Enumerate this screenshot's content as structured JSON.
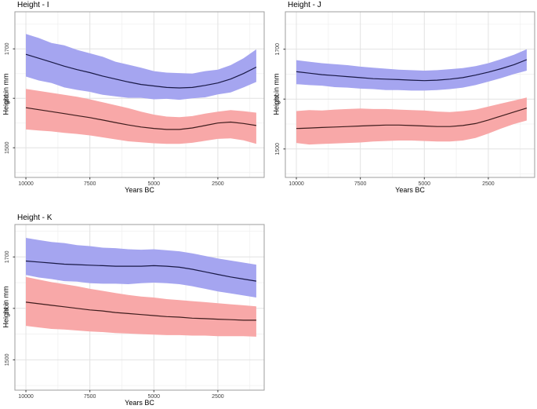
{
  "page": {
    "background": "#ffffff"
  },
  "colors": {
    "panel_bg": "#ffffff",
    "panel_border": "#9e9e9e",
    "grid_major": "#e2e2e2",
    "grid_minor": "#f0f0f0",
    "tick_mark": "#333333",
    "tick_text": "#404040",
    "blue_ribbon": "#a5a5f0",
    "blue_line": "#191946",
    "red_ribbon": "#f8a8a8",
    "red_line": "#3f1d1d"
  },
  "chart_data": [
    {
      "type": "area",
      "title": "Height - I",
      "xlabel": "Years BC",
      "ylabel": "Height in mm",
      "x_axis_reversed": true,
      "grid": "on",
      "legend": "none",
      "xlim": [
        10430,
        690
      ],
      "ylim": [
        1440,
        1775
      ],
      "x_ticks": [
        10000,
        7500,
        5000,
        2500
      ],
      "y_ticks": [
        1500,
        1600,
        1700
      ],
      "x_minor": [
        8750,
        6250,
        3750,
        1250
      ],
      "y_minor": [
        1450,
        1550,
        1650,
        1750
      ],
      "x": [
        10000,
        9500,
        9000,
        8500,
        8000,
        7500,
        7000,
        6500,
        6000,
        5500,
        5000,
        4500,
        4000,
        3500,
        3000,
        2500,
        2000,
        1500,
        1000
      ],
      "series": [
        {
          "name": "blue-band",
          "fill": "#a5a5f0",
          "line": "#191946",
          "center": [
            1689,
            1681,
            1673,
            1665,
            1658,
            1652,
            1645,
            1639,
            1633,
            1628,
            1625,
            1622,
            1621,
            1622,
            1626,
            1631,
            1639,
            1650,
            1663
          ],
          "upper": [
            1730,
            1722,
            1712,
            1707,
            1698,
            1691,
            1684,
            1674,
            1668,
            1662,
            1655,
            1652,
            1651,
            1650,
            1655,
            1658,
            1667,
            1681,
            1699
          ],
          "lower": [
            1644,
            1636,
            1631,
            1622,
            1617,
            1613,
            1607,
            1604,
            1601,
            1601,
            1598,
            1599,
            1597,
            1600,
            1602,
            1608,
            1612,
            1622,
            1633
          ]
        },
        {
          "name": "red-band",
          "fill": "#f8a8a8",
          "line": "#3f1d1d",
          "center": [
            1581,
            1577,
            1573,
            1569,
            1565,
            1561,
            1556,
            1551,
            1546,
            1542,
            1539,
            1537,
            1537,
            1540,
            1545,
            1550,
            1552,
            1549,
            1545
          ],
          "upper": [
            1619,
            1615,
            1611,
            1607,
            1603,
            1598,
            1592,
            1586,
            1580,
            1573,
            1567,
            1563,
            1562,
            1564,
            1569,
            1573,
            1576,
            1574,
            1571
          ],
          "lower": [
            1537,
            1535,
            1533,
            1530,
            1528,
            1525,
            1521,
            1517,
            1513,
            1511,
            1509,
            1508,
            1508,
            1510,
            1514,
            1518,
            1519,
            1515,
            1508
          ]
        }
      ]
    },
    {
      "type": "area",
      "title": "Height - J",
      "xlabel": "Years BC",
      "ylabel": "Height in mm",
      "x_axis_reversed": true,
      "grid": "on",
      "legend": "none",
      "xlim": [
        10430,
        690
      ],
      "ylim": [
        1443,
        1775
      ],
      "x_ticks": [
        10000,
        7500,
        5000,
        2500
      ],
      "y_ticks": [
        1500,
        1600,
        1700
      ],
      "x_minor": [
        8750,
        6250,
        3750,
        1250
      ],
      "y_minor": [
        1450,
        1550,
        1650,
        1750
      ],
      "x": [
        10000,
        9500,
        9000,
        8500,
        8000,
        7500,
        7000,
        6500,
        6000,
        5500,
        5000,
        4500,
        4000,
        3500,
        3000,
        2500,
        2000,
        1500,
        1000
      ],
      "series": [
        {
          "name": "blue-band",
          "fill": "#a5a5f0",
          "line": "#191946",
          "center": [
            1655,
            1652,
            1649,
            1647,
            1645,
            1643,
            1641,
            1640,
            1639,
            1638,
            1637,
            1638,
            1640,
            1643,
            1648,
            1654,
            1661,
            1669,
            1679
          ],
          "upper": [
            1678,
            1675,
            1672,
            1670,
            1668,
            1665,
            1663,
            1661,
            1659,
            1658,
            1657,
            1658,
            1660,
            1662,
            1666,
            1672,
            1680,
            1689,
            1700
          ],
          "lower": [
            1630,
            1628,
            1627,
            1624,
            1623,
            1621,
            1620,
            1618,
            1618,
            1617,
            1617,
            1618,
            1620,
            1623,
            1628,
            1635,
            1642,
            1650,
            1657
          ]
        },
        {
          "name": "red-band",
          "fill": "#f8a8a8",
          "line": "#3f1d1d",
          "center": [
            1541,
            1542,
            1543,
            1544,
            1545,
            1546,
            1547,
            1548,
            1548,
            1547,
            1546,
            1545,
            1545,
            1547,
            1551,
            1558,
            1566,
            1574,
            1582
          ],
          "upper": [
            1576,
            1578,
            1577,
            1579,
            1580,
            1581,
            1580,
            1580,
            1579,
            1578,
            1577,
            1575,
            1574,
            1576,
            1579,
            1585,
            1591,
            1597,
            1603
          ],
          "lower": [
            1512,
            1509,
            1510,
            1511,
            1512,
            1513,
            1515,
            1516,
            1517,
            1517,
            1516,
            1515,
            1515,
            1517,
            1522,
            1531,
            1541,
            1550,
            1557
          ]
        }
      ]
    },
    {
      "type": "area",
      "title": "Height - K",
      "xlabel": "Years BC",
      "ylabel": "Height in mm",
      "x_axis_reversed": true,
      "grid": "on",
      "legend": "none",
      "xlim": [
        10430,
        690
      ],
      "ylim": [
        1441,
        1763
      ],
      "x_ticks": [
        10000,
        7500,
        5000,
        2500
      ],
      "y_ticks": [
        1500,
        1600,
        1700
      ],
      "x_minor": [
        8750,
        6250,
        3750,
        1250
      ],
      "y_minor": [
        1450,
        1550,
        1650,
        1750
      ],
      "x": [
        10000,
        9500,
        9000,
        8500,
        8000,
        7500,
        7000,
        6500,
        6000,
        5500,
        5000,
        4500,
        4000,
        3500,
        3000,
        2500,
        2000,
        1500,
        1000
      ],
      "series": [
        {
          "name": "blue-band",
          "fill": "#a5a5f0",
          "line": "#191946",
          "center": [
            1692,
            1690,
            1688,
            1686,
            1685,
            1684,
            1683,
            1682,
            1682,
            1682,
            1683,
            1682,
            1680,
            1676,
            1671,
            1666,
            1661,
            1657,
            1653
          ],
          "upper": [
            1737,
            1733,
            1729,
            1727,
            1723,
            1721,
            1718,
            1717,
            1715,
            1714,
            1715,
            1713,
            1711,
            1707,
            1702,
            1697,
            1693,
            1689,
            1685
          ],
          "lower": [
            1665,
            1660,
            1657,
            1653,
            1652,
            1649,
            1648,
            1648,
            1647,
            1649,
            1650,
            1649,
            1647,
            1643,
            1638,
            1633,
            1629,
            1625,
            1621
          ]
        },
        {
          "name": "red-band",
          "fill": "#f8a8a8",
          "line": "#3f1d1d",
          "center": [
            1612,
            1609,
            1606,
            1603,
            1600,
            1597,
            1595,
            1592,
            1590,
            1588,
            1586,
            1584,
            1583,
            1581,
            1580,
            1579,
            1578,
            1577,
            1577
          ],
          "upper": [
            1661,
            1656,
            1651,
            1647,
            1643,
            1638,
            1634,
            1630,
            1626,
            1623,
            1621,
            1618,
            1616,
            1614,
            1612,
            1610,
            1608,
            1606,
            1604
          ],
          "lower": [
            1566,
            1563,
            1560,
            1559,
            1557,
            1555,
            1554,
            1552,
            1551,
            1550,
            1549,
            1548,
            1548,
            1547,
            1547,
            1546,
            1546,
            1546,
            1545
          ]
        }
      ]
    }
  ]
}
